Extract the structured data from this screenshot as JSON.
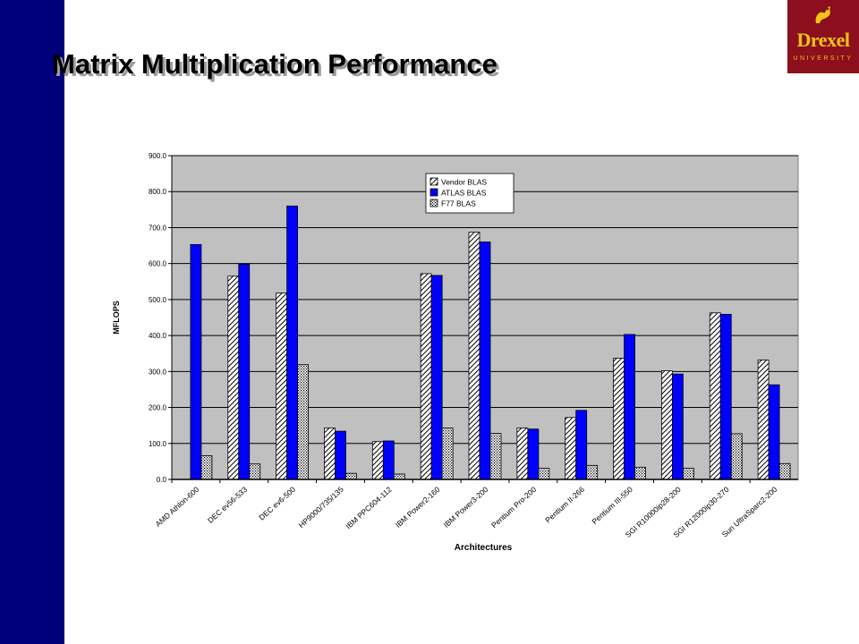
{
  "slide": {
    "title": "Matrix Multiplication Performance",
    "logo_name": "Drexel",
    "logo_sub": "UNIVERSITY"
  },
  "colors": {
    "sidebar": "#00007a",
    "plot_background": "#c0c0c0",
    "atlas_blue": "#0000ff",
    "logo_red": "#8b0f1c",
    "logo_gold": "#f0c418"
  },
  "chart_data": {
    "type": "bar",
    "title": "",
    "xlabel": "Architectures",
    "ylabel": "MFLOPS",
    "ylim": [
      0,
      900
    ],
    "yticks": [
      "0.0",
      "100.0",
      "200.0",
      "300.0",
      "400.0",
      "500.0",
      "600.0",
      "700.0",
      "800.0",
      "900.0"
    ],
    "grid": true,
    "legend_position": "top-center",
    "categories": [
      "AMD Athlon-600",
      "DEC ev56-533",
      "DEC ev6-500",
      "HP9000/735/135",
      "IBM PPC604-112",
      "IBM Power2-160",
      "IBM Power3-200",
      "Pentium Pro-200",
      "Pentium II-266",
      "Pentium III-550",
      "SGI R10000ip28-200",
      "SGI R12000ip30-270",
      "Sun UltraSparc2-200"
    ],
    "series": [
      {
        "name": "Vendor BLAS",
        "style": "hatched",
        "values": [
          0,
          565,
          518,
          143,
          105,
          572,
          687,
          143,
          172,
          337,
          302,
          463,
          332
        ]
      },
      {
        "name": "ATLAS BLAS",
        "style": "blue",
        "values": [
          653,
          598,
          760,
          134,
          107,
          567,
          660,
          140,
          192,
          403,
          293,
          459,
          263
        ]
      },
      {
        "name": "F77 BLAS",
        "style": "dotted",
        "values": [
          66,
          43,
          319,
          17,
          15,
          143,
          128,
          31,
          39,
          34,
          31,
          127,
          44
        ]
      }
    ]
  }
}
